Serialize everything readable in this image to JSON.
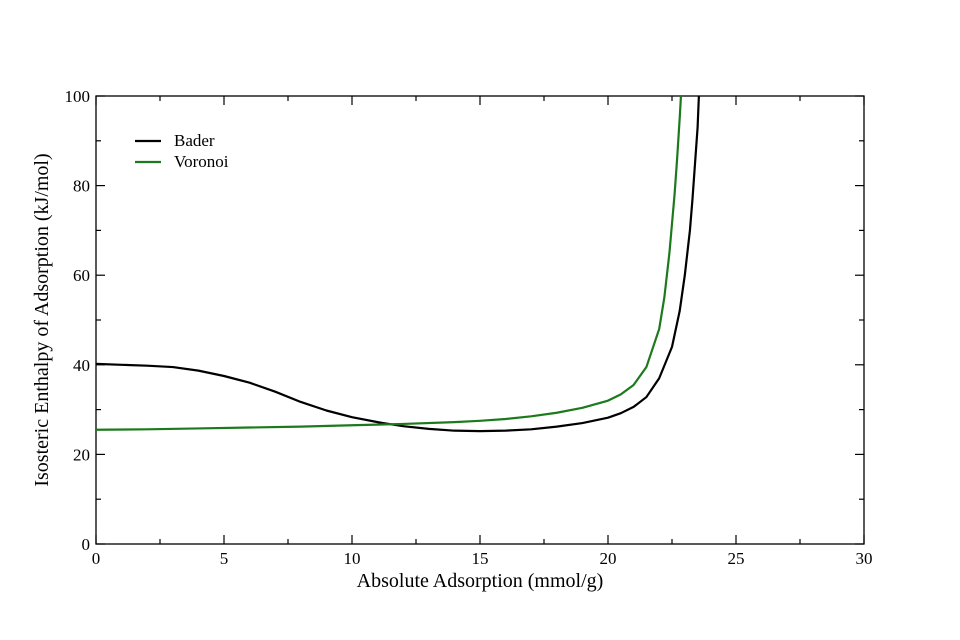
{
  "chart_data": {
    "type": "line",
    "xlabel": "Absolute Adsorption (mmol/g)",
    "ylabel": "Isosteric Enthalpy of Adsorption (kJ/mol)",
    "xlim": [
      0,
      30
    ],
    "ylim": [
      0,
      100
    ],
    "xticks": [
      0,
      5,
      10,
      15,
      20,
      25,
      30
    ],
    "yticks": [
      0,
      20,
      40,
      60,
      80,
      100
    ],
    "grid": false,
    "legend_position": "top-left",
    "series": [
      {
        "name": "Bader",
        "color": "#000000",
        "x": [
          0,
          1,
          2,
          3,
          4,
          5,
          6,
          7,
          8,
          9,
          10,
          11,
          12,
          13,
          14,
          15,
          16,
          17,
          18,
          19,
          20,
          20.5,
          21,
          21.5,
          22,
          22.5,
          22.8,
          23,
          23.2,
          23.3,
          23.4,
          23.5,
          23.55
        ],
        "y": [
          40.2,
          40.0,
          39.8,
          39.5,
          38.7,
          37.5,
          36.0,
          34.0,
          31.7,
          29.8,
          28.3,
          27.2,
          26.3,
          25.7,
          25.3,
          25.2,
          25.3,
          25.6,
          26.2,
          27.0,
          28.2,
          29.2,
          30.6,
          32.8,
          37.0,
          44.0,
          52.0,
          60.0,
          70.0,
          77.0,
          85.0,
          93.0,
          100
        ]
      },
      {
        "name": "Voronoi",
        "color": "#1c7a1c",
        "x": [
          0,
          2,
          4,
          6,
          8,
          10,
          12,
          14,
          15,
          16,
          17,
          18,
          19,
          20,
          20.5,
          21,
          21.5,
          22,
          22.2,
          22.4,
          22.6,
          22.7,
          22.8,
          22.85
        ],
        "y": [
          25.5,
          25.6,
          25.8,
          26.0,
          26.2,
          26.5,
          26.8,
          27.2,
          27.5,
          27.9,
          28.5,
          29.3,
          30.4,
          32.0,
          33.4,
          35.5,
          39.5,
          48.0,
          55.0,
          65.0,
          78.0,
          86.0,
          95.0,
          100
        ]
      }
    ]
  }
}
